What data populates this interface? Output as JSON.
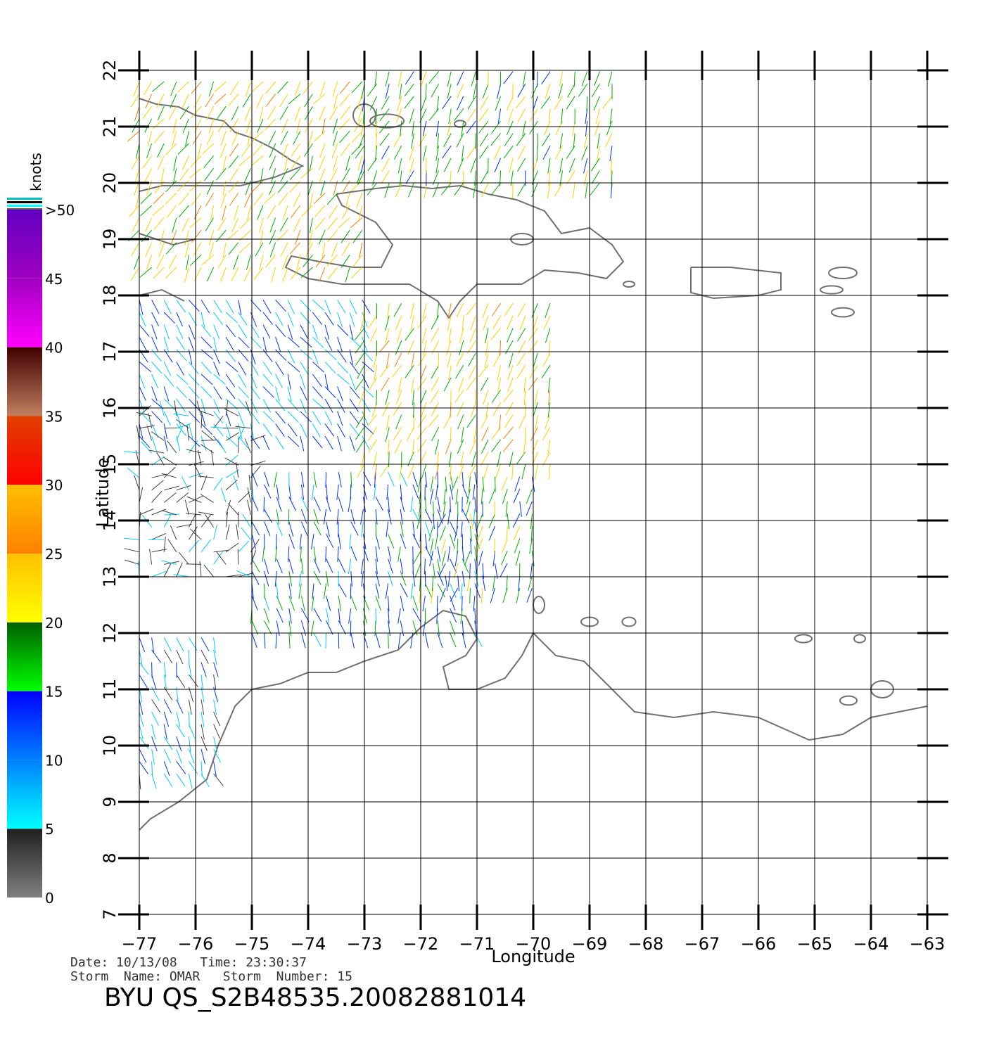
{
  "map": {
    "lon_range": [
      -77,
      -63
    ],
    "lat_range": [
      7,
      22
    ],
    "lon_ticks": [
      -77,
      -76,
      -75,
      -74,
      -73,
      -72,
      -71,
      -70,
      -69,
      -68,
      -67,
      -66,
      -65,
      -64,
      -63
    ],
    "lat_ticks": [
      7,
      8,
      9,
      10,
      11,
      12,
      13,
      14,
      15,
      16,
      17,
      18,
      19,
      20,
      21,
      22
    ],
    "lon_tick_labels": [
      "−77",
      "−76",
      "−75",
      "−74",
      "−73",
      "−72",
      "−71",
      "−70",
      "−69",
      "−68",
      "−67",
      "−66",
      "−65",
      "−64",
      "−63"
    ],
    "lat_tick_labels": [
      "7",
      "8",
      "9",
      "10",
      "11",
      "12",
      "13",
      "14",
      "15",
      "16",
      "17",
      "18",
      "19",
      "20",
      "21",
      "22"
    ],
    "xlabel": "Longitude",
    "ylabel": "Latitude",
    "grid": true,
    "coastline_color": "#707070"
  },
  "colorbar": {
    "title": "knots",
    "labels": [
      "0",
      "5",
      "10",
      "15",
      "20",
      "25",
      "30",
      "35",
      "40",
      "45",
      ">50"
    ],
    "values": [
      0,
      5,
      10,
      15,
      20,
      25,
      30,
      35,
      40,
      45,
      50
    ],
    "colors": [
      "#808080",
      "#00ffff",
      "#0000ff",
      "#00ff00",
      "#ffff00",
      "#ff8800",
      "#ff0000",
      "#a06040",
      "#ff00ff",
      "#8000c0",
      "#6020c0"
    ]
  },
  "info": {
    "date_line": "Date: 10/13/08   Time: 23:30:37",
    "storm_line": "Storm  Name: OMAR   Storm  Number: 15",
    "product_title": "BYU  QS_S2B48535.20082881014"
  },
  "chart_data": {
    "type": "wind-vector-map",
    "variable": "wind speed",
    "unit": "knots",
    "regions": [
      {
        "lon": [
          -77,
          -73
        ],
        "lat": [
          18.5,
          22
        ],
        "speed": 22,
        "dir": 210
      },
      {
        "lon": [
          -73,
          -68.5
        ],
        "lat": [
          20,
          22
        ],
        "speed": 18,
        "dir": 200
      },
      {
        "lon": [
          -77,
          -73
        ],
        "lat": [
          15.5,
          18
        ],
        "speed": 10,
        "dir": 150
      },
      {
        "lon": [
          -77,
          -75
        ],
        "lat": [
          13,
          16
        ],
        "speed": 3,
        "dir": 0
      },
      {
        "lon": [
          -75,
          -71
        ],
        "lat": [
          12,
          15
        ],
        "speed": 13,
        "dir": 170
      },
      {
        "lon": [
          -73,
          -69.5
        ],
        "lat": [
          15,
          18
        ],
        "speed": 22,
        "dir": 200
      },
      {
        "lon": [
          -72,
          -70
        ],
        "lat": [
          12.8,
          15
        ],
        "speed": 17,
        "dir": 190
      },
      {
        "lon": [
          -77,
          -75.5
        ],
        "lat": [
          9.5,
          12
        ],
        "speed": 8,
        "dir": 160
      }
    ]
  }
}
